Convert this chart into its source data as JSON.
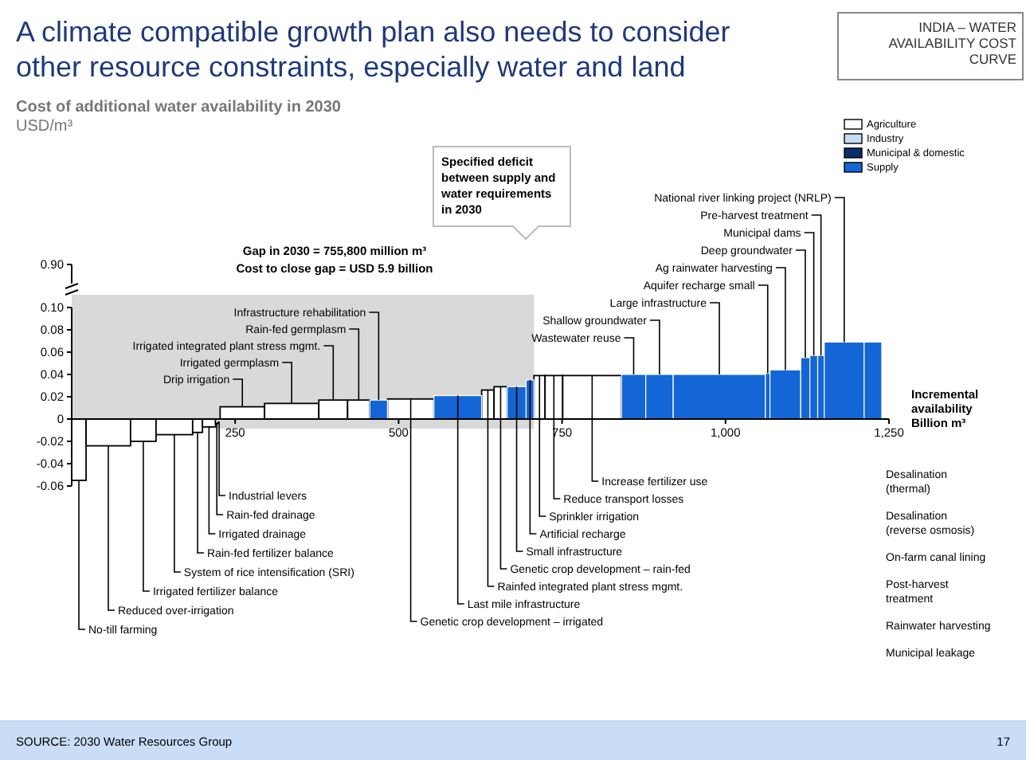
{
  "chart_data": {
    "type": "bar",
    "title": "A climate compatible growth plan also needs to consider other resource constraints, especially water and land",
    "subtitle": "Cost of additional water availability in 2030",
    "xlabel": "Incremental availability Billion m³",
    "xlim": [
      0,
      1250
    ],
    "xticks": [
      250,
      500,
      750,
      {
        "value": 1000,
        "label": "1,000"
      },
      {
        "value": 1250,
        "label": "1,250"
      }
    ],
    "ylim": [
      -0.06,
      0.1
    ],
    "yticks": [
      -0.06,
      -0.04,
      -0.02,
      0,
      0.02,
      0.04,
      0.06,
      0.08,
      {
        "value": 0.1,
        "label": "0.10"
      }
    ],
    "legend": "top right",
    "bands": [
      {
        "axis": "x",
        "from": 0,
        "to": 707,
        "color": "#d9d9d9"
      }
    ],
    "series": [
      {
        "name": "Agriculture",
        "color": "#ffffff",
        "x": [
          11,
          56,
          109.5,
          157,
          192.5,
          210,
          222,
          261,
          336.5,
          400,
          439,
          518.5,
          636.5,
          656,
          715.5,
          737.5,
          796
        ],
        "values": [
          -0.055,
          -0.024,
          -0.02,
          -0.014,
          -0.012,
          -0.007,
          -0.004,
          0.011,
          0.014,
          0.017,
          0.017,
          0.018,
          0.026,
          0.029,
          0.039,
          0.039,
          0.039
        ]
      },
      {
        "name": "Industry",
        "color": "#c6dbf4",
        "x": [
          225.5
        ],
        "values": [
          -0.002
        ]
      },
      {
        "name": "Municipal & domestic",
        "color": "#0b2d6b"
      },
      {
        "name": "Supply",
        "color": "#1466d6",
        "x": [
          469.5,
          590.5,
          680.5,
          701,
          859.5,
          899,
          990.5,
          1064.5,
          1091.5,
          1122,
          1135,
          1146,
          1181.5,
          1225.5
        ],
        "values": [
          0.017,
          0.021,
          0.029,
          0.035,
          0.04,
          0.04,
          0.04,
          0.041,
          0.044,
          0.055,
          0.057,
          0.057,
          0.069,
          0.069
        ]
      }
    ],
    "annotations": [
      "INDIA – WATER AVAILABILITY COST CURVE",
      "Gap in 2030 = 755,800 million m³",
      "Cost to close gap = USD 5.9 billion",
      "Specified deficit between supply and water requirements in 2030",
      "0.90",
      "Desalination (thermal)",
      "Desalination (reverse osmosis)",
      "On-farm canal lining",
      "Post-harvest treatment",
      "Rainwater harvesting",
      "Municipal leakage",
      "SOURCE: 2030 Water Resources Group",
      "17",
      "USD/m³",
      {
        "text": "No-till farming",
        "x": 11,
        "y": -0.055
      },
      {
        "text": "Reduced over-irrigation",
        "x": 56,
        "y": -0.024
      },
      {
        "text": "Irrigated fertilizer balance",
        "x": 109.5,
        "y": -0.02
      },
      {
        "text": "System of rice intensification (SRI)",
        "x": 157,
        "y": -0.014
      },
      {
        "text": "Rain-fed fertilizer balance",
        "x": 192.5,
        "y": -0.012
      },
      {
        "text": "Irrigated drainage",
        "x": 210,
        "y": -0.007
      },
      {
        "text": "Rain-fed drainage",
        "x": 222,
        "y": -0.004
      },
      {
        "text": "Industrial levers",
        "x": 225.5,
        "y": -0.002
      },
      {
        "text": "Drip irrigation",
        "x": 261,
        "y": 0.011
      },
      {
        "text": "Irrigated germplasm",
        "x": 336.5,
        "y": 0.014
      },
      {
        "text": "Irrigated integrated plant stress mgmt.",
        "x": 400,
        "y": 0.017
      },
      {
        "text": "Rain-fed germplasm",
        "x": 439,
        "y": 0.017
      },
      {
        "text": "Infrastructure rehabilitation",
        "x": 469.5,
        "y": 0.017
      },
      {
        "text": "Genetic crop development – irrigated",
        "x": 518.5,
        "y": 0.018
      },
      {
        "text": "Last mile infrastructure",
        "x": 590.5,
        "y": 0.021
      },
      {
        "text": "Rainfed integrated plant stress mgmt.",
        "x": 636.5,
        "y": 0.026
      },
      {
        "text": "Genetic crop development – rain-fed",
        "x": 656,
        "y": 0.029
      },
      {
        "text": "Small infrastructure",
        "x": 680.5,
        "y": 0.029
      },
      {
        "text": "Artificial recharge",
        "x": 701,
        "y": 0.035
      },
      {
        "text": "Sprinkler irrigation",
        "x": 715.5,
        "y": 0.039
      },
      {
        "text": "Reduce transport losses",
        "x": 737.5,
        "y": 0.039
      },
      {
        "text": "Increase fertilizer use",
        "x": 796,
        "y": 0.039
      },
      {
        "text": "Wastewater reuse",
        "x": 859.5,
        "y": 0.04
      },
      {
        "text": "Shallow groundwater",
        "x": 899,
        "y": 0.04
      },
      {
        "text": "Large infrastructure",
        "x": 990.5,
        "y": 0.04
      },
      {
        "text": "Aquifer recharge small",
        "x": 1064.5,
        "y": 0.041
      },
      {
        "text": "Ag rainwater harvesting",
        "x": 1091.5,
        "y": 0.044
      },
      {
        "text": "Deep groundwater",
        "x": 1122,
        "y": 0.055
      },
      {
        "text": "Municipal dams",
        "x": 1135,
        "y": 0.057
      },
      {
        "text": "Pre-harvest treatment",
        "x": 1146,
        "y": 0.057
      },
      {
        "text": "National river linking project (NRLP)",
        "x": 1181.5,
        "y": 0.069
      }
    ]
  }
}
